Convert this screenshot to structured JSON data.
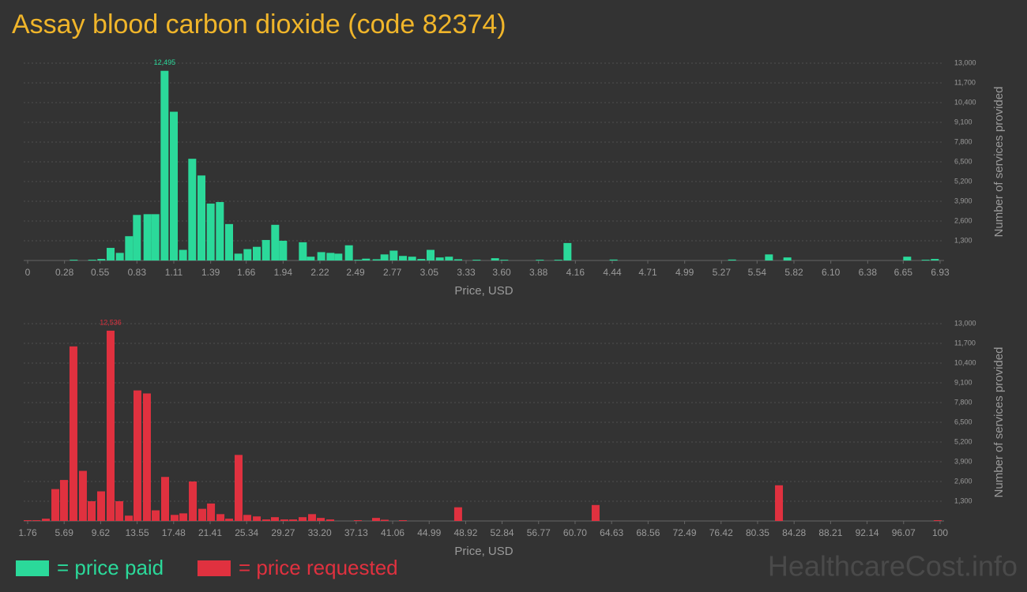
{
  "title": "Assay blood carbon dioxide (code 82374)",
  "watermark": "HealthcareCost.info",
  "chart_data": [
    {
      "type": "bar",
      "xlabel": "Price, USD",
      "ylabel": "Number of services provided",
      "grid": true,
      "x": [
        0.35,
        0.49,
        0.56,
        0.63,
        0.7,
        0.77,
        0.83,
        0.91,
        0.97,
        1.04,
        1.11,
        1.18,
        1.25,
        1.32,
        1.39,
        1.46,
        1.53,
        1.6,
        1.67,
        1.74,
        1.81,
        1.88,
        1.94,
        2.09,
        2.15,
        2.23,
        2.3,
        2.36,
        2.44,
        2.51,
        2.57,
        2.65,
        2.71,
        2.78,
        2.85,
        2.92,
        2.99,
        3.06,
        3.13,
        3.2,
        3.27,
        3.41,
        3.55,
        3.62,
        3.89,
        4.03,
        4.1,
        4.45,
        5.35,
        5.63,
        5.77,
        6.68,
        6.82,
        6.89
      ],
      "series": [
        {
          "name": "= price paid",
          "color": "#2bd99a",
          "values": [
            50,
            50,
            100,
            830,
            500,
            1600,
            3000,
            3050,
            3050,
            12495,
            9800,
            700,
            6700,
            5600,
            3750,
            3850,
            2400,
            450,
            750,
            900,
            1350,
            2350,
            1300,
            1200,
            250,
            550,
            500,
            450,
            1000,
            50,
            120,
            80,
            400,
            650,
            300,
            250,
            100,
            700,
            200,
            250,
            80,
            50,
            150,
            50,
            50,
            50,
            1150,
            60,
            60,
            400,
            200,
            250,
            50,
            100
          ],
          "value_labels": [
            null,
            null,
            null,
            null,
            null,
            null,
            null,
            null,
            null,
            "12,495",
            null,
            null,
            null,
            null,
            null,
            null,
            null,
            null,
            null,
            null,
            null,
            null,
            null,
            null,
            null,
            null,
            null,
            null,
            null,
            null,
            null,
            null,
            null,
            null,
            null,
            null,
            null,
            null,
            null,
            null,
            null,
            null,
            null,
            null,
            null,
            null,
            null,
            null,
            null,
            null,
            null,
            null,
            null,
            null
          ]
        }
      ],
      "xlim": [
        0,
        6.93
      ],
      "xticks": [
        0,
        0.28,
        0.55,
        0.83,
        1.11,
        1.39,
        1.66,
        1.94,
        2.22,
        2.49,
        2.77,
        3.05,
        3.33,
        {
          "value": 3.6,
          "label": "3.60"
        },
        3.88,
        4.16,
        4.44,
        4.71,
        4.99,
        5.27,
        5.54,
        5.82,
        {
          "value": 6.1,
          "label": "6.10"
        },
        6.38,
        6.65,
        6.93
      ],
      "ylim": [
        0,
        13000
      ],
      "yticks": [
        {
          "value": 1300,
          "label": "1,300"
        },
        {
          "value": 2600,
          "label": "2,600"
        },
        {
          "value": 3900,
          "label": "3,900"
        },
        {
          "value": 5200,
          "label": "5,200"
        },
        {
          "value": 6500,
          "label": "6,500"
        },
        {
          "value": 7800,
          "label": "7,800"
        },
        {
          "value": 9100,
          "label": "9,100"
        },
        {
          "value": 10400,
          "label": "10,400"
        },
        {
          "value": 11700,
          "label": "11,700"
        },
        {
          "value": 13000,
          "label": "13,000"
        }
      ]
    },
    {
      "type": "bar",
      "xlabel": "Price, USD",
      "ylabel": "Number of services provided",
      "grid": true,
      "x": [
        1.76,
        2.7,
        3.72,
        4.74,
        5.67,
        6.69,
        7.71,
        8.65,
        9.67,
        10.69,
        11.63,
        12.65,
        13.58,
        14.6,
        15.54,
        16.56,
        17.58,
        18.52,
        19.54,
        20.56,
        21.5,
        22.52,
        23.45,
        24.47,
        25.41,
        26.43,
        27.45,
        28.38,
        29.4,
        30.34,
        31.36,
        32.38,
        33.32,
        34.34,
        37.31,
        39.27,
        40.2,
        42.16,
        48.11,
        62.91,
        82.65,
        99.74
      ],
      "series": [
        {
          "name": "= price requested",
          "color": "#e0313f",
          "values": [
            50,
            50,
            150,
            2100,
            2700,
            11500,
            3300,
            1300,
            1950,
            12536,
            1300,
            350,
            8600,
            8400,
            700,
            2900,
            400,
            500,
            2600,
            800,
            1150,
            450,
            150,
            4350,
            400,
            300,
            100,
            250,
            100,
            100,
            250,
            450,
            200,
            100,
            50,
            200,
            80,
            50,
            900,
            1050,
            2350,
            50
          ],
          "value_labels": [
            null,
            null,
            null,
            null,
            null,
            null,
            null,
            null,
            null,
            "12,536",
            null,
            null,
            null,
            null,
            null,
            null,
            null,
            null,
            null,
            null,
            null,
            null,
            null,
            null,
            null,
            null,
            null,
            null,
            null,
            null,
            null,
            null,
            null,
            null,
            null,
            null,
            null,
            null,
            null,
            null,
            null,
            null
          ]
        }
      ],
      "xlim": [
        1.76,
        100
      ],
      "xticks": [
        1.76,
        5.69,
        9.62,
        13.55,
        17.48,
        21.41,
        25.34,
        29.27,
        {
          "value": 33.2,
          "label": "33.20"
        },
        37.13,
        41.06,
        44.99,
        48.92,
        52.84,
        56.77,
        {
          "value": 60.7,
          "label": "60.70"
        },
        64.63,
        68.56,
        72.49,
        76.42,
        80.35,
        84.28,
        88.21,
        92.14,
        96.07,
        100
      ],
      "ylim": [
        0,
        13000
      ],
      "yticks": [
        {
          "value": 1300,
          "label": "1,300"
        },
        {
          "value": 2600,
          "label": "2,600"
        },
        {
          "value": 3900,
          "label": "3,900"
        },
        {
          "value": 5200,
          "label": "5,200"
        },
        {
          "value": 6500,
          "label": "6,500"
        },
        {
          "value": 7800,
          "label": "7,800"
        },
        {
          "value": 9100,
          "label": "9,100"
        },
        {
          "value": 10400,
          "label": "10,400"
        },
        {
          "value": 11700,
          "label": "11,700"
        },
        {
          "value": 13000,
          "label": "13,000"
        }
      ]
    }
  ]
}
